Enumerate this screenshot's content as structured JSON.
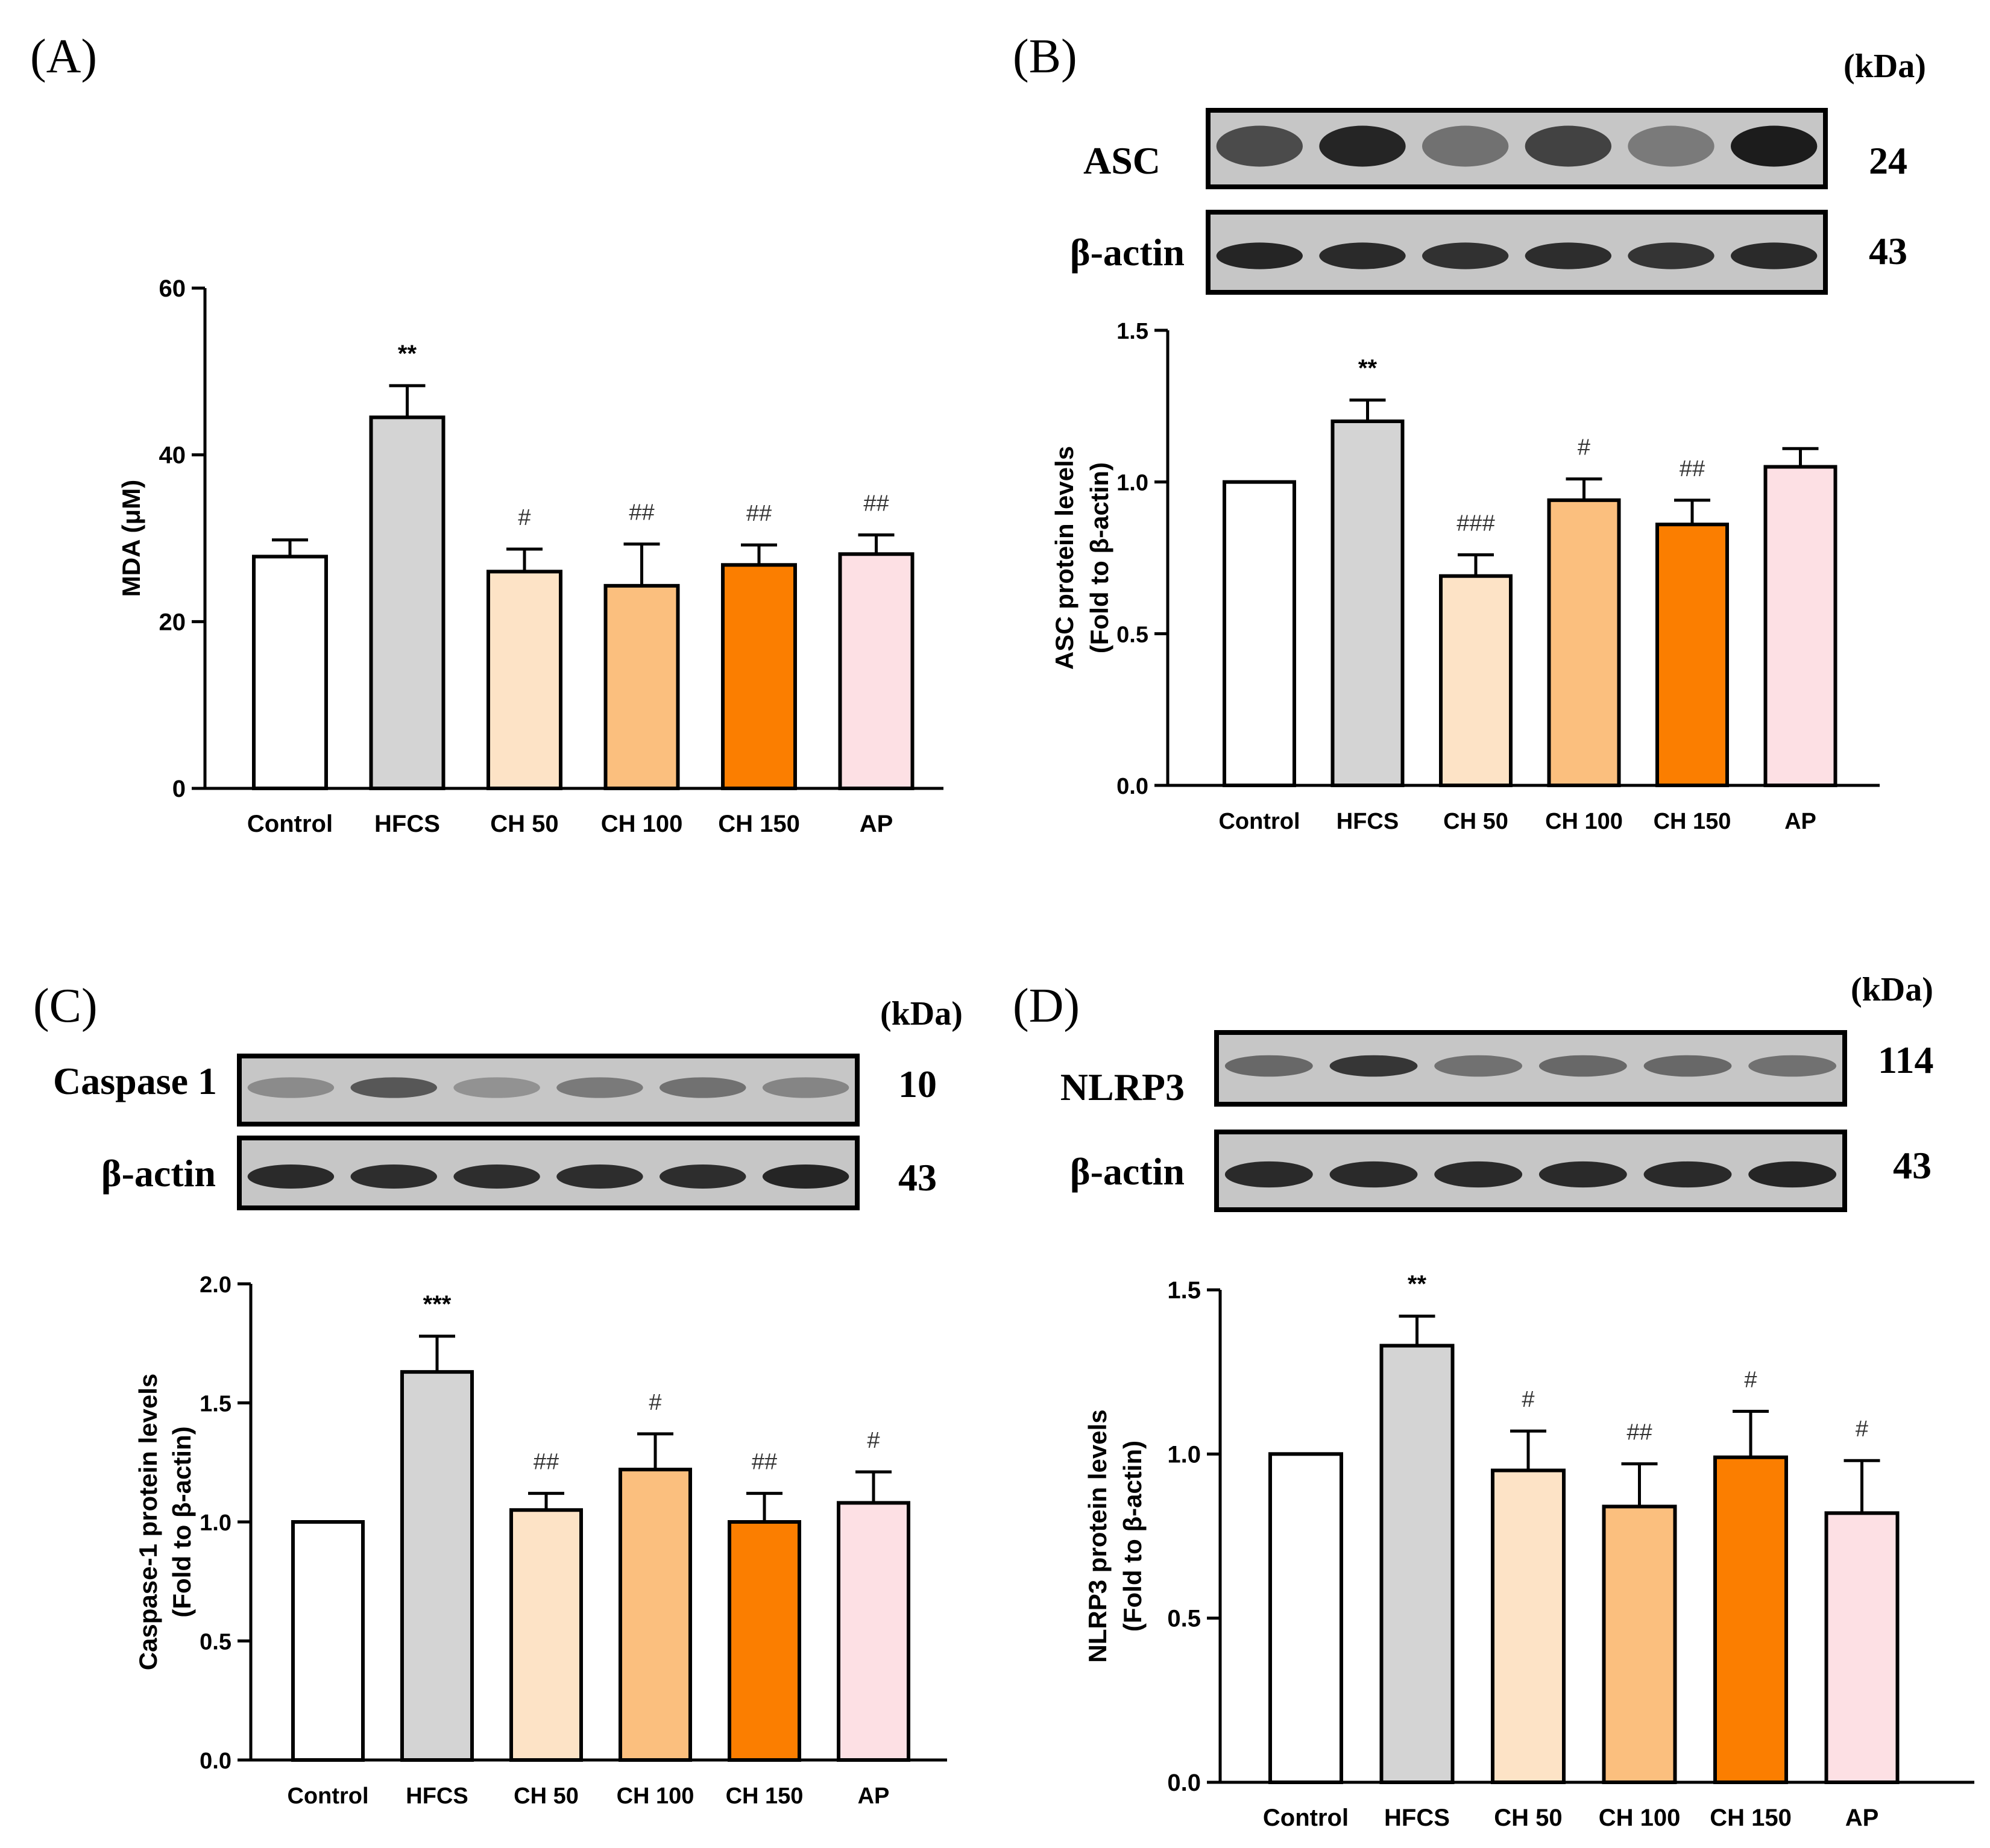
{
  "groups": [
    "Control",
    "HFCS",
    "CH 50",
    "CH 100",
    "CH 150",
    "AP"
  ],
  "colors": {
    "bars": [
      "#ffffff",
      "#d4d4d4",
      "#fde3c6",
      "#fbbf7e",
      "#fb7e00",
      "#fde0e4"
    ],
    "axis": "#000000",
    "blot_bg": "#c6c6c6",
    "band": "#1c1c1c"
  },
  "panel_labels": {
    "A": "(A)",
    "B": "(B)",
    "C": "(C)",
    "D": "(D)"
  },
  "kda_label": "(kDa)",
  "blots": {
    "B": [
      {
        "name": "ASC",
        "kda": "24",
        "intensity": [
          0.72,
          0.95,
          0.5,
          0.78,
          0.45,
          1.0
        ],
        "thickness": 1.0
      },
      {
        "name": "β-actin",
        "kda": "43",
        "intensity": [
          0.95,
          0.92,
          0.88,
          0.9,
          0.86,
          0.92
        ],
        "thickness": 0.55
      }
    ],
    "C": [
      {
        "name": "Caspase 1",
        "kda": "10",
        "intensity": [
          0.35,
          0.65,
          0.3,
          0.45,
          0.5,
          0.38
        ],
        "thickness": 0.45
      },
      {
        "name": "β-actin",
        "kda": "43",
        "intensity": [
          0.92,
          0.9,
          0.9,
          0.9,
          0.9,
          0.95
        ],
        "thickness": 0.55
      }
    ],
    "D": [
      {
        "name": "NLRP3",
        "kda": "114",
        "intensity": [
          0.55,
          0.85,
          0.5,
          0.55,
          0.55,
          0.5
        ],
        "thickness": 0.45
      },
      {
        "name": "β-actin",
        "kda": "43",
        "intensity": [
          0.92,
          0.92,
          0.92,
          0.92,
          0.92,
          0.95
        ],
        "thickness": 0.55
      }
    ]
  },
  "chart_data": [
    {
      "panel": "A",
      "type": "bar",
      "categories": [
        "Control",
        "HFCS",
        "CH 50",
        "CH 100",
        "CH 150",
        "AP"
      ],
      "values": [
        27.8,
        44.5,
        26.0,
        24.3,
        26.8,
        28.1
      ],
      "errors": [
        2.0,
        3.8,
        2.7,
        5.0,
        2.4,
        2.3
      ],
      "annotations": [
        "",
        "**",
        "#",
        "##",
        "##",
        "##"
      ],
      "ylabel": "MDA (μM)",
      "ylim": [
        0,
        60
      ],
      "yticks": [
        "0",
        "20",
        "40",
        "60"
      ]
    },
    {
      "panel": "B",
      "type": "bar",
      "categories": [
        "Control",
        "HFCS",
        "CH 50",
        "CH 100",
        "CH 150",
        "AP"
      ],
      "values": [
        1.0,
        1.2,
        0.69,
        0.94,
        0.86,
        1.05
      ],
      "errors": [
        0.0,
        0.07,
        0.07,
        0.07,
        0.08,
        0.06
      ],
      "annotations": [
        "",
        "**",
        "###",
        "#",
        "##",
        ""
      ],
      "ylabel": "ASC protein levels",
      "ylabel2": "(Fold to β-actin)",
      "ylim": [
        0,
        1.5
      ],
      "yticks": [
        "0.0",
        "0.5",
        "1.0",
        "1.5"
      ]
    },
    {
      "panel": "C",
      "type": "bar",
      "categories": [
        "Control",
        "HFCS",
        "CH 50",
        "CH 100",
        "CH 150",
        "AP"
      ],
      "values": [
        1.0,
        1.63,
        1.05,
        1.22,
        1.0,
        1.08
      ],
      "errors": [
        0.0,
        0.15,
        0.07,
        0.15,
        0.12,
        0.13
      ],
      "annotations": [
        "",
        "***",
        "##",
        "#",
        "##",
        "#"
      ],
      "ylabel": "Caspase-1 protein levels",
      "ylabel2": "(Fold to β-actin)",
      "ylim": [
        0,
        2.0
      ],
      "yticks": [
        "0.0",
        "0.5",
        "1.0",
        "1.5",
        "2.0"
      ]
    },
    {
      "panel": "D",
      "type": "bar",
      "categories": [
        "Control",
        "HFCS",
        "CH 50",
        "CH 100",
        "CH 150",
        "AP"
      ],
      "values": [
        1.0,
        1.33,
        0.95,
        0.84,
        0.99,
        0.82
      ],
      "errors": [
        0.0,
        0.09,
        0.12,
        0.13,
        0.14,
        0.16
      ],
      "annotations": [
        "",
        "**",
        "#",
        "##",
        "#",
        "#"
      ],
      "ylabel": "NLRP3 protein levels",
      "ylabel2": "(Fold to β-actin)",
      "ylim": [
        0,
        1.5
      ],
      "yticks": [
        "0.0",
        "0.5",
        "1.0",
        "1.5"
      ]
    }
  ]
}
